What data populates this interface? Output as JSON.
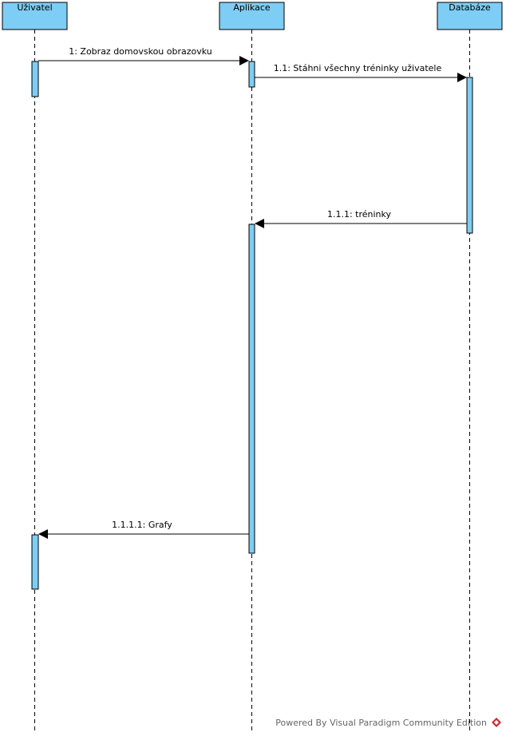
{
  "lifelines": [
    {
      "id": "uzivatel",
      "label": "Uživatel"
    },
    {
      "id": "aplikace",
      "label": "Aplikace"
    },
    {
      "id": "databaze",
      "label": "Databáze"
    }
  ],
  "messages": [
    {
      "id": "m1",
      "label": "1: Zobraz domovskou obrazovku",
      "from": "uzivatel",
      "to": "aplikace"
    },
    {
      "id": "m2",
      "label": "1.1: Stáhni všechny tréninky uživatele",
      "from": "aplikace",
      "to": "databaze"
    },
    {
      "id": "m3",
      "label": "1.1.1: tréninky",
      "from": "databaze",
      "to": "aplikace"
    },
    {
      "id": "m4",
      "label": "1.1.1.1: Grafy",
      "from": "aplikace",
      "to": "uzivatel"
    }
  ],
  "footer": {
    "text": "Powered By Visual Paradigm Community Edition",
    "logo": "visual-paradigm-logo-icon",
    "logo_color": "#d9262c"
  },
  "colors": {
    "lifeline_fill": "#7ecdf4",
    "activation_fill": "#7ecdf4"
  }
}
